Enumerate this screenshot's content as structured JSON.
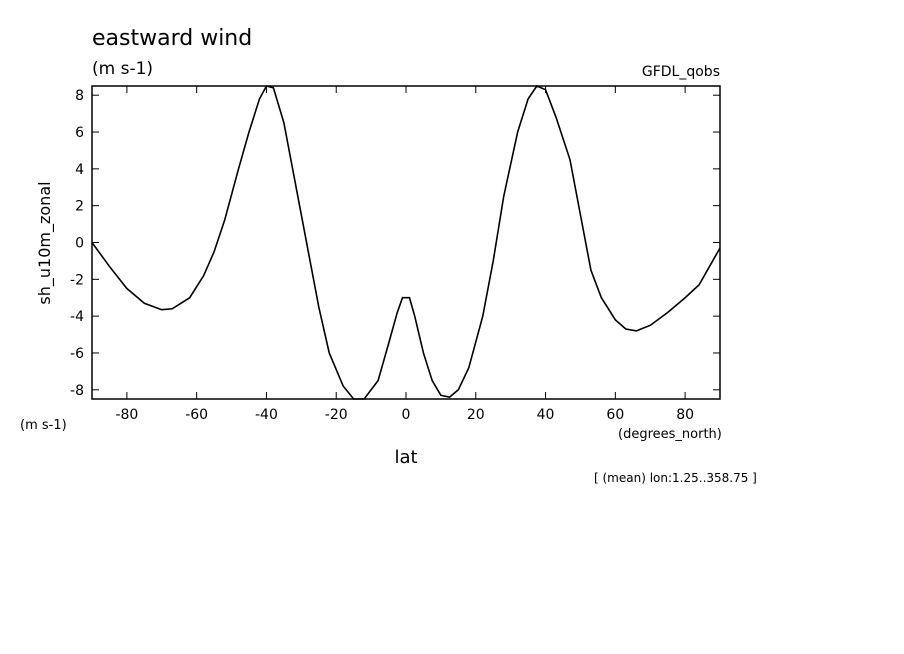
{
  "chart_data": {
    "type": "line",
    "title": "eastward wind",
    "subtitle": "(m s-1)",
    "source": "GFDL_qobs",
    "y_label": "sh_u10m_zonal",
    "y_units": "(m s-1)",
    "x_units": "(degrees_north)",
    "x_label": "lat",
    "footnote": "[ (mean) lon:1.25..358.75 ]",
    "xlim": [
      -90,
      90
    ],
    "xticks": [
      -80,
      -60,
      -40,
      -20,
      0,
      20,
      40,
      60,
      80
    ],
    "ylim": [
      -8.5,
      8.5
    ],
    "yticks": [
      -8,
      -6,
      -4,
      -2,
      0,
      2,
      4,
      6,
      8
    ],
    "x": [
      -90,
      -85,
      -80,
      -75,
      -70,
      -67,
      -62,
      -58,
      -55,
      -52,
      -48,
      -45,
      -42,
      -40,
      -38,
      -35,
      -32,
      -28,
      -25,
      -22,
      -18,
      -15,
      -12,
      -8,
      -5,
      -2.5,
      -1,
      1,
      2.5,
      5,
      7.5,
      10,
      12.5,
      15,
      18,
      22,
      25,
      28,
      32,
      35,
      37.5,
      40,
      43,
      47,
      50,
      53,
      56,
      60,
      63,
      66,
      70,
      75,
      80,
      84,
      87,
      90
    ],
    "series": [
      {
        "name": "sh_u10m_zonal",
        "color": "#000000",
        "values": [
          0,
          -1.3,
          -2.5,
          -3.3,
          -3.65,
          -3.6,
          -3.0,
          -1.8,
          -0.5,
          1.2,
          4.0,
          6.0,
          7.8,
          8.5,
          8.4,
          6.5,
          3.5,
          -0.5,
          -3.5,
          -6.0,
          -7.8,
          -8.5,
          -8.5,
          -7.5,
          -5.5,
          -3.8,
          -3.0,
          -3.0,
          -4.0,
          -6.0,
          -7.5,
          -8.3,
          -8.4,
          -8.0,
          -6.8,
          -4.0,
          -1.0,
          2.5,
          6.0,
          7.8,
          8.5,
          8.3,
          6.8,
          4.5,
          1.5,
          -1.5,
          -3.0,
          -4.2,
          -4.7,
          -4.8,
          -4.5,
          -3.8,
          -3.0,
          -2.3,
          -1.3,
          -0.3
        ]
      }
    ]
  }
}
